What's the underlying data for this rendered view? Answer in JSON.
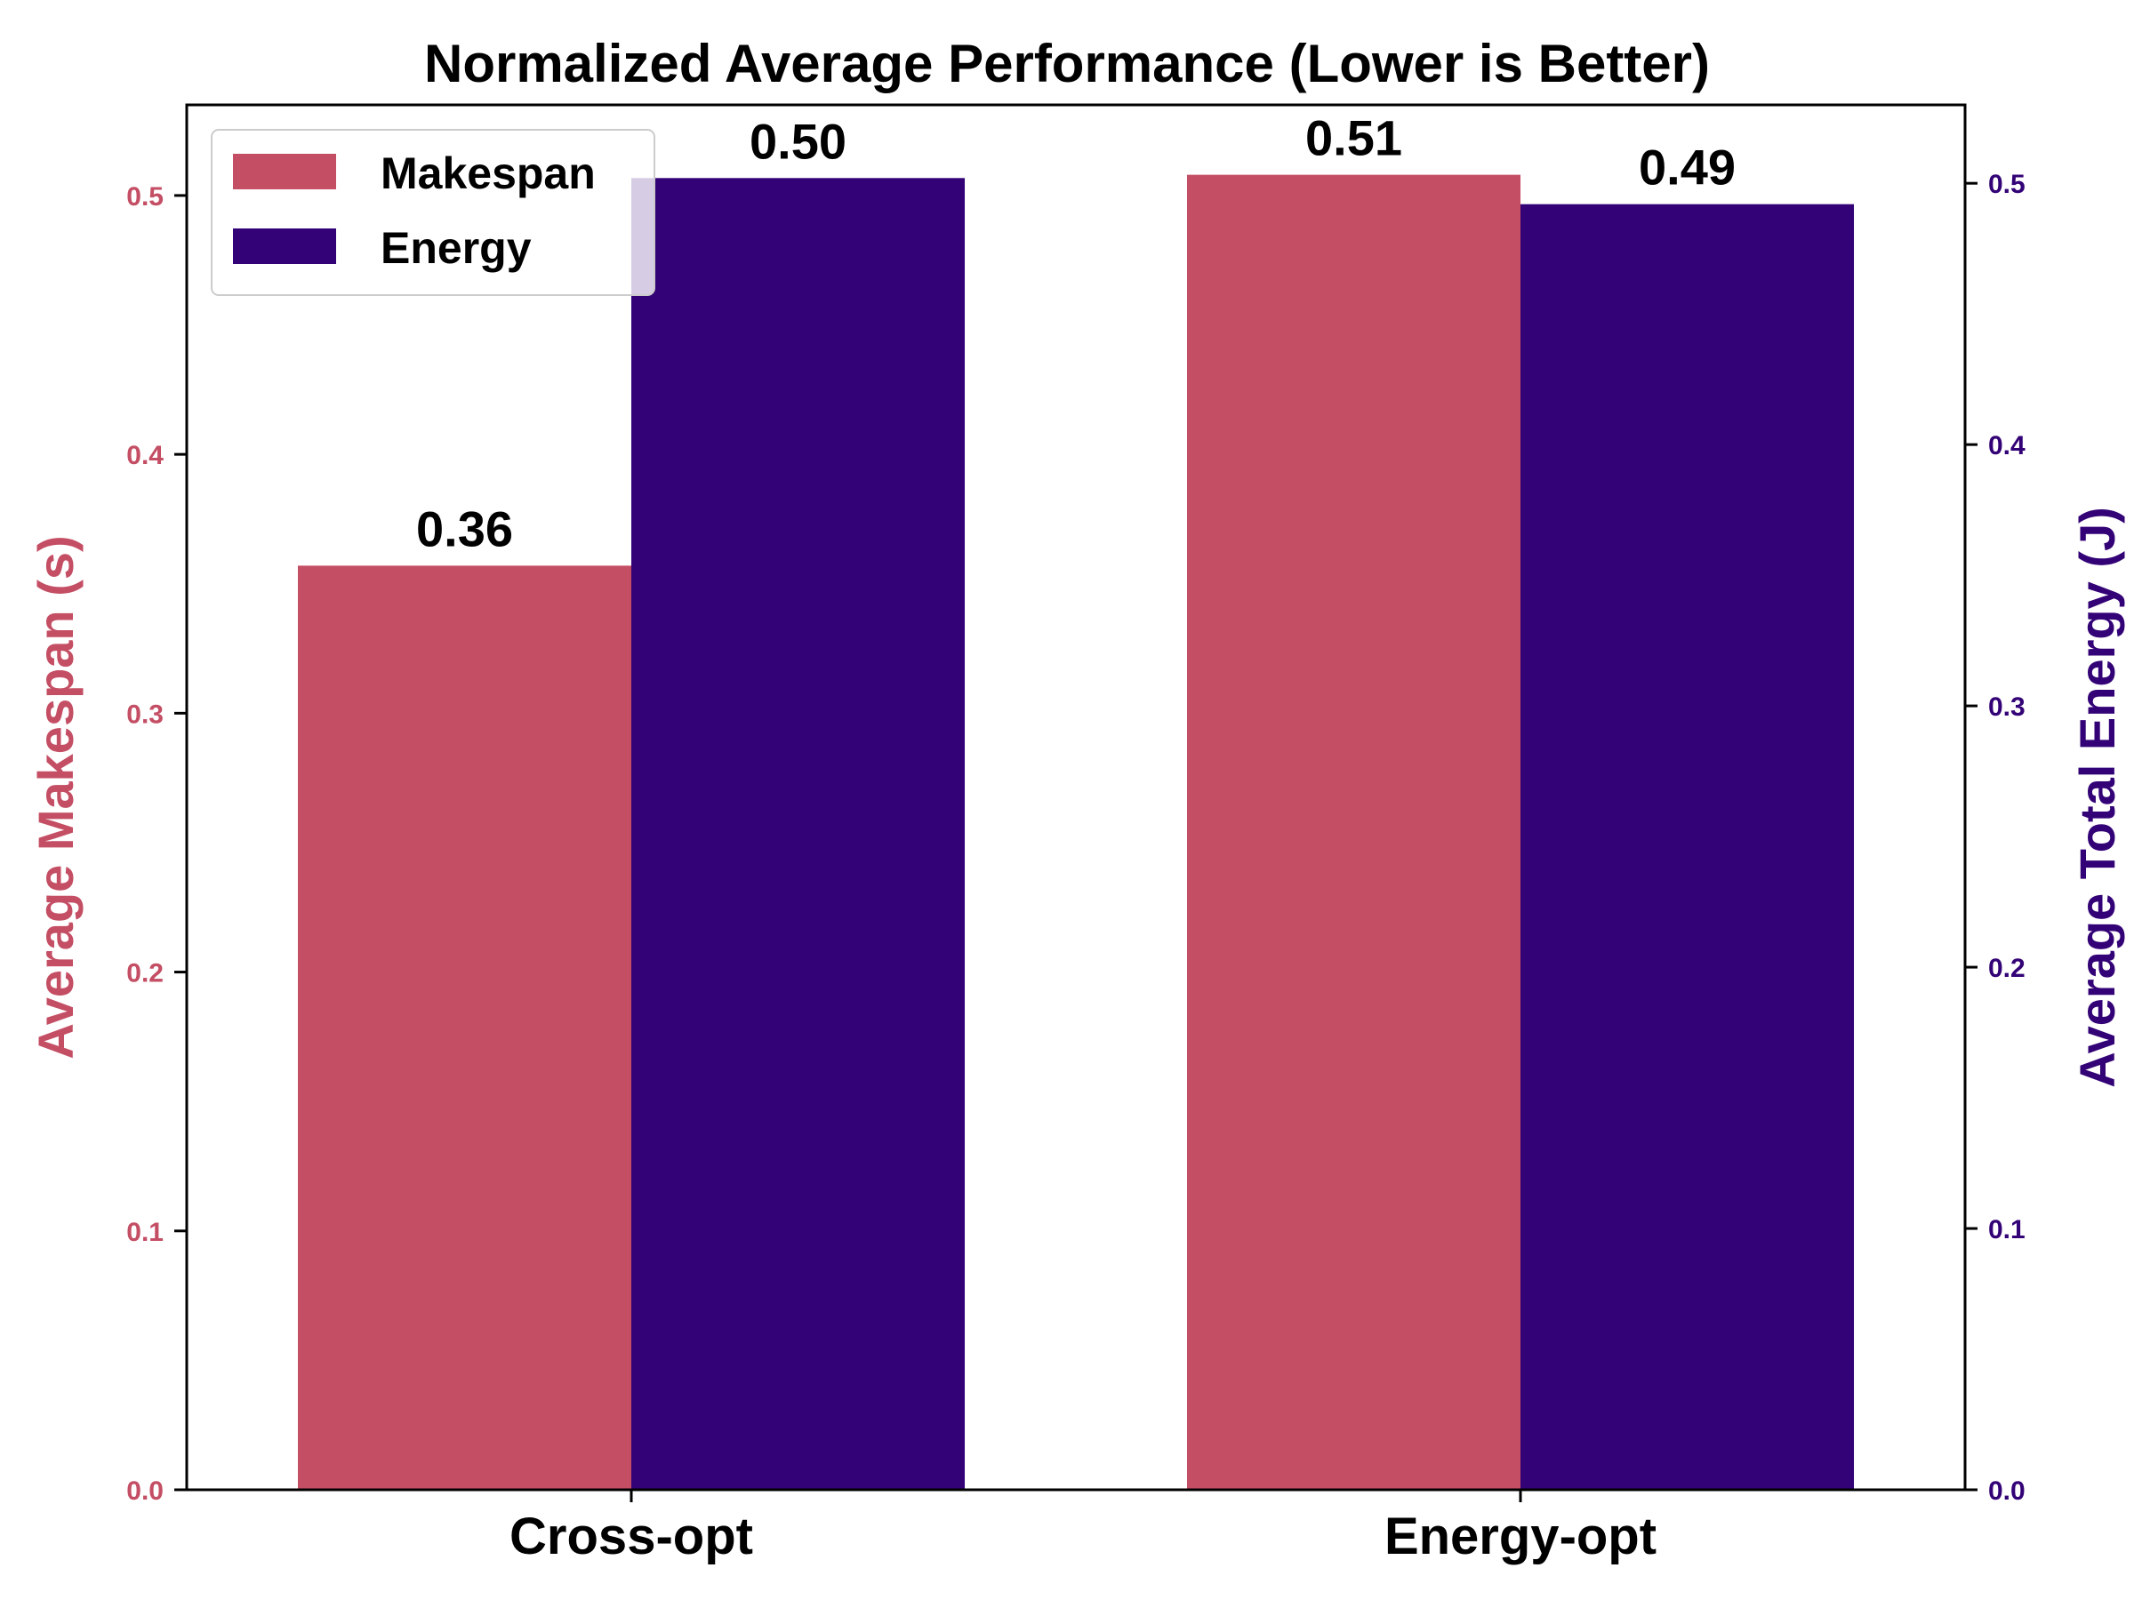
{
  "chart_data": {
    "type": "bar",
    "title": "Normalized Average Performance (Lower is Better)",
    "categories": [
      "Cross-opt",
      "Energy-opt"
    ],
    "series": [
      {
        "name": "Makespan",
        "axis": "left",
        "color": "#c44e64",
        "values": [
          0.357,
          0.508
        ],
        "labels": [
          "0.36",
          "0.51"
        ]
      },
      {
        "name": "Energy",
        "axis": "right",
        "color": "#330276",
        "values": [
          0.502,
          0.492
        ],
        "labels": [
          "0.50",
          "0.49"
        ]
      }
    ],
    "ylabel_left": "Average Makespan (s)",
    "ylabel_right": "Average Total Energy (J)",
    "ylim_left": [
      0,
      0.535
    ],
    "ylim_right": [
      0,
      0.53
    ],
    "yticks_left": [
      "0.0",
      "0.1",
      "0.2",
      "0.3",
      "0.4",
      "0.5"
    ],
    "yticks_right": [
      "0.0",
      "0.1",
      "0.2",
      "0.3",
      "0.4",
      "0.5"
    ],
    "left_axis_color": "#c44e64",
    "right_axis_color": "#330276",
    "legend_position": "top-left",
    "grid": false
  }
}
